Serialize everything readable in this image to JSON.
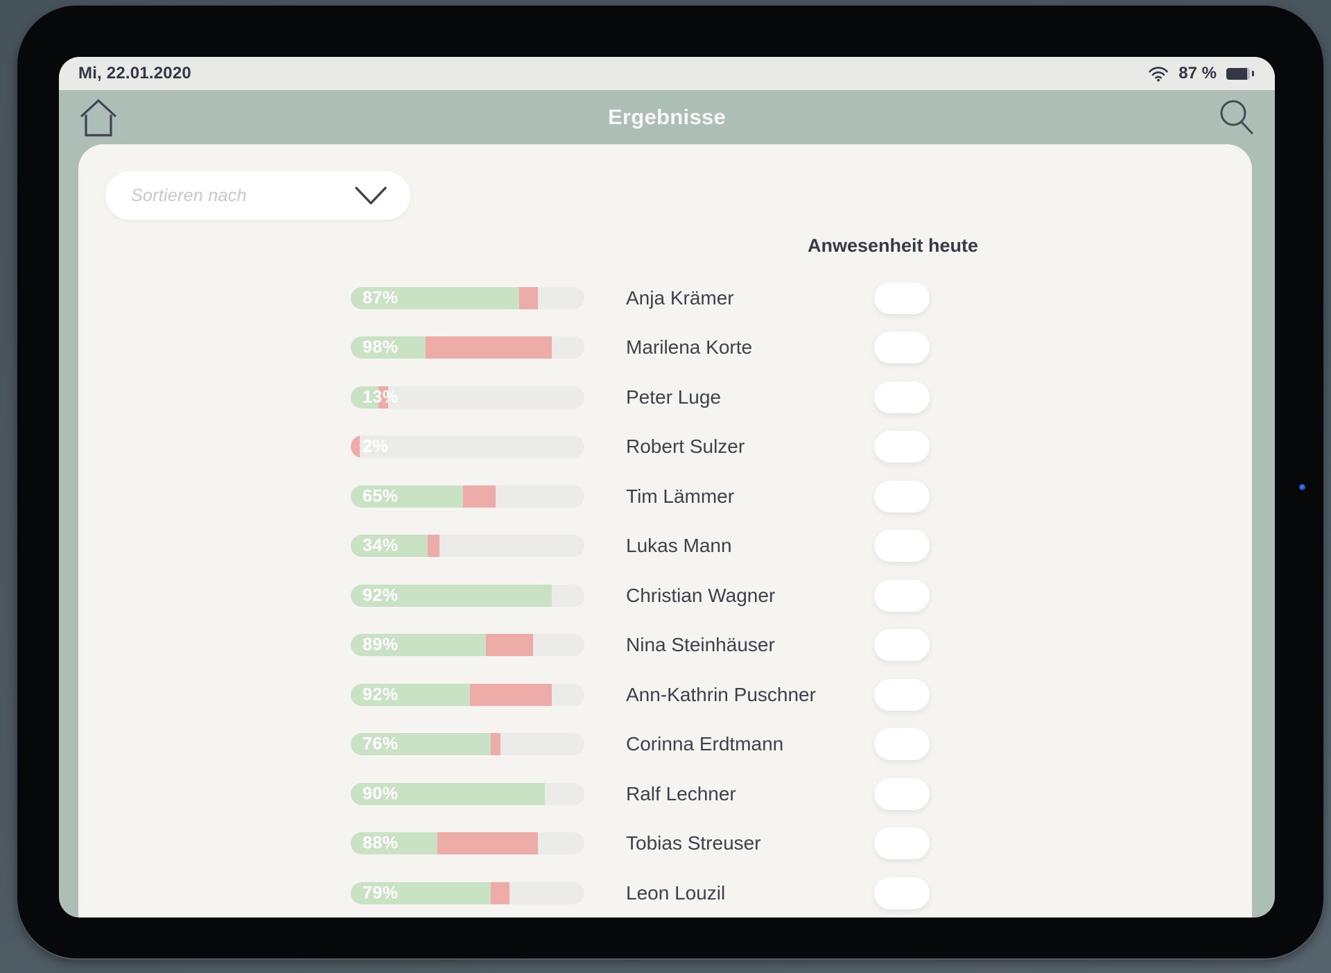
{
  "status_bar": {
    "date": "Mi, 22.01.2020",
    "battery_text": "87 %",
    "battery_percent": 87
  },
  "header": {
    "title": "Ergebnisse"
  },
  "icons": {
    "home": "home-icon (house outline)",
    "search": "search-icon (magnifier)",
    "wifi": "wifi-icon",
    "battery": "battery-icon",
    "dropdown_chevron": "chevron-down-icon"
  },
  "sort_dropdown": {
    "placeholder": "Sortieren nach"
  },
  "results": {
    "attendance_header": "Anwesenheit heute",
    "rows": [
      {
        "name": "Anja Krämer",
        "score_label": "87%",
        "green_pct": 72,
        "red_pct": 8
      },
      {
        "name": "Marilena Korte",
        "score_label": "98%",
        "green_pct": 32,
        "red_pct": 54
      },
      {
        "name": "Peter Luge",
        "score_label": "13%",
        "green_pct": 12,
        "red_pct": 4
      },
      {
        "name": "Robert Sulzer",
        "score_label": "2%",
        "green_pct": 0,
        "red_pct": 4
      },
      {
        "name": "Tim Lämmer",
        "score_label": "65%",
        "green_pct": 48,
        "red_pct": 14
      },
      {
        "name": "Lukas Mann",
        "score_label": "34%",
        "green_pct": 33,
        "red_pct": 5
      },
      {
        "name": "Christian Wagner",
        "score_label": "92%",
        "green_pct": 86,
        "red_pct": 0
      },
      {
        "name": "Nina Steinhäuser",
        "score_label": "89%",
        "green_pct": 58,
        "red_pct": 20
      },
      {
        "name": "Ann-Kathrin Puschner",
        "score_label": "92%",
        "green_pct": 51,
        "red_pct": 35
      },
      {
        "name": "Corinna Erdtmann",
        "score_label": "76%",
        "green_pct": 60,
        "red_pct": 4
      },
      {
        "name": "Ralf Lechner",
        "score_label": "90%",
        "green_pct": 83,
        "red_pct": 0
      },
      {
        "name": "Tobias Streuser",
        "score_label": "88%",
        "green_pct": 37,
        "red_pct": 43
      },
      {
        "name": "Leon Louzil",
        "score_label": "79%",
        "green_pct": 60,
        "red_pct": 8
      }
    ]
  },
  "colors": {
    "bar_green": "#c9e2c4",
    "bar_red": "#edaca8",
    "bar_track": "#ebebe9",
    "header_bg": "#acbeb6",
    "card_bg": "#f5f4f1",
    "statusbar_bg": "#e9e9e8",
    "text_dark": "#3c414b",
    "title_text": "#f7f7f4"
  }
}
